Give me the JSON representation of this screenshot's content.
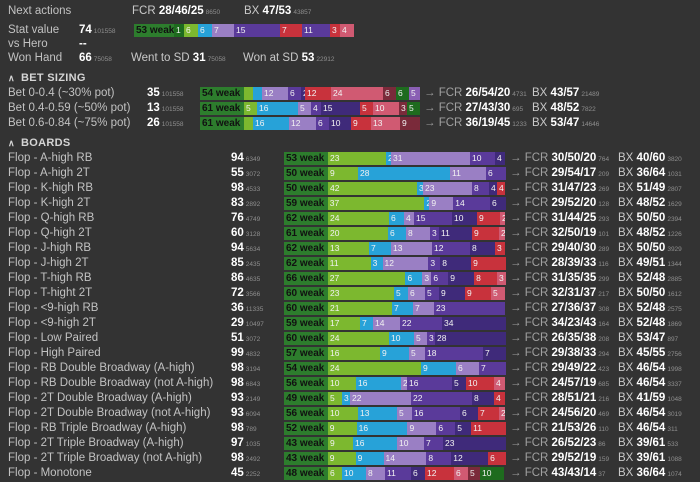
{
  "colors": {
    "background": "#333333",
    "strong": "#1e6b1e",
    "good": "#7cb82f",
    "nut": "#2d7d2d",
    "draw": "#27a2d8",
    "purple_light": "#9a7fc4",
    "purple": "#5a3a9a",
    "red": "#c8323c",
    "pink": "#d05a72"
  },
  "header": {
    "next_actions_label": "Next actions",
    "fcr_label": "FCR",
    "fcr_value": "28/46/25",
    "fcr_count": "8650",
    "bx_label": "BX",
    "bx_value": "47/53",
    "bx_count": "43857",
    "stat_value_label": "Stat value",
    "stat_value": "74",
    "stat_value_count": "101558",
    "stat_bar": {
      "weak_value": "53",
      "weak_label": "weak",
      "segs": [
        "1",
        "6",
        "6",
        "7",
        "15",
        "7",
        "11",
        "3",
        "4"
      ]
    },
    "vs_hero_label": "vs Hero",
    "vs_hero_value": "--",
    "won_hand_label": "Won Hand",
    "won_hand_value": "66",
    "won_hand_count": "75058",
    "went_sd_label": "Went to SD",
    "went_sd_value": "31",
    "went_sd_count": "75058",
    "won_sd_label": "Won at SD",
    "won_sd_value": "53",
    "won_sd_count": "22912"
  },
  "bet_sizing": {
    "title": "BET SIZING",
    "rows": [
      {
        "label": "Bet 0-0.4 (~30% pot)",
        "value": "35",
        "count": "101558",
        "weak": "54",
        "segs": [
          "",
          "",
          "12",
          "6",
          "2",
          "12",
          "24",
          "6",
          "6",
          "5"
        ],
        "fcr": "26/54/20",
        "fcr_count": "4731",
        "bx": "43/57",
        "bx_count": "21489"
      },
      {
        "label": "Bet 0.4-0.59 (~50% pot)",
        "value": "13",
        "count": "101558",
        "weak": "61",
        "segs": [
          "5",
          "16",
          "5",
          "4",
          "15",
          "5",
          "10",
          "3",
          "5"
        ],
        "fcr": "27/43/30",
        "fcr_count": "695",
        "bx": "48/52",
        "bx_count": "7822"
      },
      {
        "label": "Bet 0.6-0.84 (~75% pot)",
        "value": "26",
        "count": "101558",
        "weak": "61",
        "segs": [
          "",
          "16",
          "12",
          "6",
          "10",
          "9",
          "13",
          "9"
        ],
        "fcr": "36/19/45",
        "fcr_count": "1233",
        "bx": "53/47",
        "bx_count": "14646"
      }
    ]
  },
  "boards": {
    "title": "BOARDS",
    "rows": [
      {
        "label": "Flop - A-high RB",
        "value": "94",
        "count": "6349",
        "weak": "53",
        "segs": [
          "23",
          "2",
          "31",
          "10",
          "4"
        ],
        "fcr": "30/50/20",
        "fcr_count": "764",
        "bx": "40/60",
        "bx_count": "3820"
      },
      {
        "label": "Flop - A-high 2T",
        "value": "55",
        "count": "3072",
        "weak": "50",
        "segs": [
          "9",
          "28",
          "11",
          "6"
        ],
        "fcr": "29/54/17",
        "fcr_count": "209",
        "bx": "36/64",
        "bx_count": "1031"
      },
      {
        "label": "Flop - K-high RB",
        "value": "98",
        "count": "4533",
        "weak": "50",
        "segs": [
          "42",
          "3",
          "23",
          "8",
          "4",
          "4"
        ],
        "fcr": "31/47/23",
        "fcr_count": "269",
        "bx": "51/49",
        "bx_count": "2807"
      },
      {
        "label": "Flop - K-high 2T",
        "value": "83",
        "count": "2892",
        "weak": "59",
        "segs": [
          "37",
          "2",
          "9",
          "14",
          "6"
        ],
        "fcr": "29/52/20",
        "fcr_count": "128",
        "bx": "48/52",
        "bx_count": "1629"
      },
      {
        "label": "Flop - Q-high RB",
        "value": "76",
        "count": "4749",
        "weak": "62",
        "segs": [
          "24",
          "6",
          "4",
          "15",
          "10",
          "9",
          "2"
        ],
        "fcr": "31/44/25",
        "fcr_count": "293",
        "bx": "50/50",
        "bx_count": "2394"
      },
      {
        "label": "Flop - Q-high 2T",
        "value": "60",
        "count": "3128",
        "weak": "61",
        "segs": [
          "20",
          "6",
          "8",
          "3",
          "11",
          "9",
          "2"
        ],
        "fcr": "32/50/19",
        "fcr_count": "101",
        "bx": "48/52",
        "bx_count": "1226"
      },
      {
        "label": "Flop - J-high RB",
        "value": "94",
        "count": "5634",
        "weak": "62",
        "segs": [
          "13",
          "7",
          "13",
          "12",
          "8",
          "3"
        ],
        "fcr": "29/40/30",
        "fcr_count": "289",
        "bx": "50/50",
        "bx_count": "3929"
      },
      {
        "label": "Flop - J-high 2T",
        "value": "85",
        "count": "2435",
        "weak": "62",
        "segs": [
          "11",
          "3",
          "12",
          "3",
          "8",
          "9"
        ],
        "fcr": "28/39/33",
        "fcr_count": "116",
        "bx": "49/51",
        "bx_count": "1344"
      },
      {
        "label": "Flop - T-high RB",
        "value": "86",
        "count": "4635",
        "weak": "66",
        "segs": [
          "27",
          "6",
          "3",
          "6",
          "9",
          "8",
          "3"
        ],
        "fcr": "31/35/35",
        "fcr_count": "299",
        "bx": "52/48",
        "bx_count": "2885"
      },
      {
        "label": "Flop - T-hight 2T",
        "value": "72",
        "count": "3566",
        "weak": "60",
        "segs": [
          "23",
          "5",
          "6",
          "5",
          "9",
          "9",
          "5"
        ],
        "fcr": "32/31/37",
        "fcr_count": "217",
        "bx": "50/50",
        "bx_count": "1612"
      },
      {
        "label": "Flop - <9-high RB",
        "value": "36",
        "count": "11335",
        "weak": "60",
        "segs": [
          "21",
          "7",
          "7",
          "23"
        ],
        "fcr": "27/36/37",
        "fcr_count": "308",
        "bx": "52/48",
        "bx_count": "2575"
      },
      {
        "label": "Flop - <9-high 2T",
        "value": "29",
        "count": "10497",
        "weak": "59",
        "segs": [
          "17",
          "7",
          "14",
          "22",
          "34"
        ],
        "fcr": "34/23/43",
        "fcr_count": "164",
        "bx": "52/48",
        "bx_count": "1869"
      },
      {
        "label": "Flop - Low Paired",
        "value": "51",
        "count": "3072",
        "weak": "60",
        "segs": [
          "24",
          "10",
          "5",
          "3",
          "28"
        ],
        "fcr": "26/35/38",
        "fcr_count": "208",
        "bx": "53/47",
        "bx_count": "897"
      },
      {
        "label": "Flop - High Paired",
        "value": "99",
        "count": "4832",
        "weak": "57",
        "segs": [
          "16",
          "9",
          "5",
          "18",
          "7"
        ],
        "fcr": "29/38/33",
        "fcr_count": "294",
        "bx": "45/55",
        "bx_count": "2756"
      },
      {
        "label": "Flop - RB Double Broadway (A-high)",
        "value": "98",
        "count": "3194",
        "weak": "54",
        "segs": [
          "24",
          "9",
          "6",
          "7"
        ],
        "fcr": "29/49/22",
        "fcr_count": "423",
        "bx": "46/54",
        "bx_count": "1998"
      },
      {
        "label": "Flop - RB Double Broadway (not A-high)",
        "value": "98",
        "count": "6843",
        "weak": "56",
        "segs": [
          "10",
          "16",
          "2",
          "16",
          "5",
          "10",
          "4"
        ],
        "fcr": "24/57/19",
        "fcr_count": "685",
        "bx": "46/54",
        "bx_count": "3337"
      },
      {
        "label": "Flop - 2T Double Broadway (A-high)",
        "value": "93",
        "count": "2149",
        "weak": "49",
        "segs": [
          "5",
          "3",
          "22",
          "22",
          "8",
          "4"
        ],
        "fcr": "28/51/21",
        "fcr_count": "216",
        "bx": "41/59",
        "bx_count": "1048"
      },
      {
        "label": "Flop - 2T Double Broadway (not A-high)",
        "value": "93",
        "count": "6094",
        "weak": "56",
        "segs": [
          "10",
          "13",
          "5",
          "16",
          "6",
          "7",
          "2"
        ],
        "fcr": "24/56/20",
        "fcr_count": "469",
        "bx": "46/54",
        "bx_count": "3019"
      },
      {
        "label": "Flop - RB Triple Broadway (A-high)",
        "value": "98",
        "count": "789",
        "weak": "52",
        "segs": [
          "9",
          "16",
          "9",
          "6",
          "5",
          "11"
        ],
        "fcr": "21/53/26",
        "fcr_count": "110",
        "bx": "46/54",
        "bx_count": "311"
      },
      {
        "label": "Flop - 2T Triple Broadway (A-high)",
        "value": "97",
        "count": "1035",
        "weak": "43",
        "segs": [
          "9",
          "16",
          "10",
          "7",
          "23"
        ],
        "fcr": "26/52/23",
        "fcr_count": "86",
        "bx": "39/61",
        "bx_count": "533"
      },
      {
        "label": "Flop - 2T Triple Broadway (not A-high)",
        "value": "98",
        "count": "2492",
        "weak": "43",
        "segs": [
          "9",
          "9",
          "14",
          "8",
          "12",
          "6"
        ],
        "fcr": "29/52/19",
        "fcr_count": "159",
        "bx": "39/61",
        "bx_count": "1088"
      },
      {
        "label": "Flop - Monotone",
        "value": "45",
        "count": "2252",
        "weak": "48",
        "segs": [
          "6",
          "10",
          "8",
          "11",
          "6",
          "12",
          "6",
          "5",
          "10"
        ],
        "fcr": "43/43/14",
        "fcr_count": "37",
        "bx": "36/64",
        "bx_count": "1074"
      }
    ]
  }
}
